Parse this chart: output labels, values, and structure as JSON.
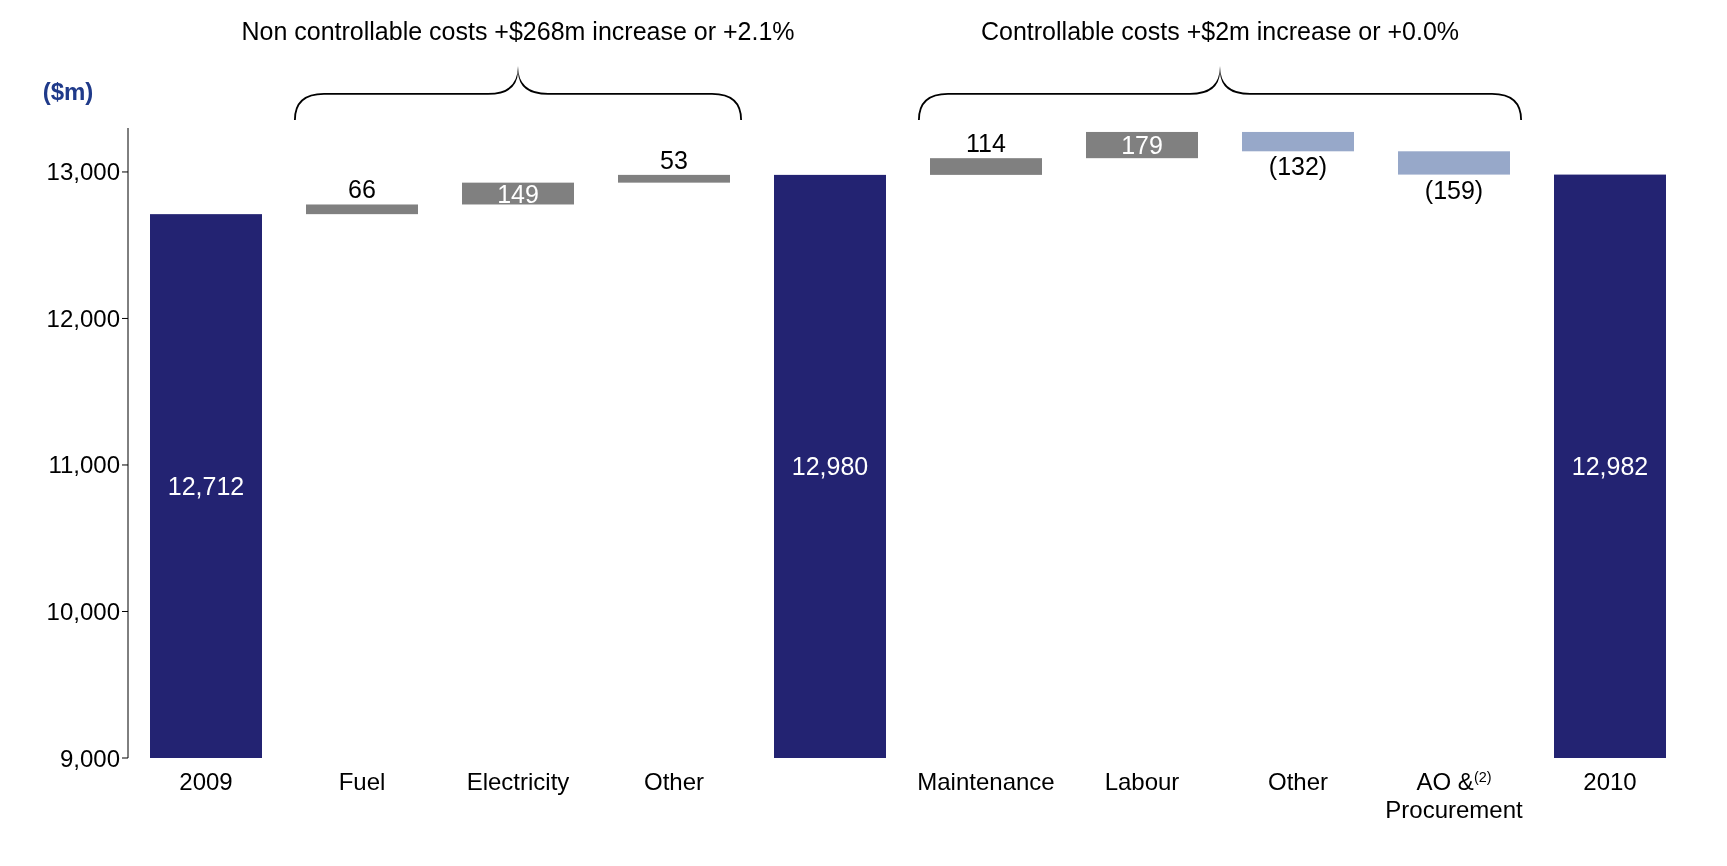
{
  "chart_data": {
    "type": "bar",
    "ylabel": "($m)",
    "annotations": [
      "Non controllable costs +$268m increase or +2.1%",
      "Controllable costs +$2m increase or +0.0%"
    ],
    "categories": [
      "2009",
      "Fuel",
      "Electricity",
      "Other",
      null,
      "Maintenance",
      "Labour",
      "Other",
      "AO &$^{(2)}$ Procurement",
      "2010"
    ],
    "values": [
      12712,
      66,
      149,
      53,
      12980,
      114,
      179,
      -132,
      -159,
      12982
    ],
    "base": [
      null,
      12712,
      12778,
      12927,
      null,
      12980,
      13094,
      13273,
      13141,
      null
    ],
    "colors": [
      "#232372",
      "#808080",
      "#808080",
      "#808080",
      "#232372",
      "#808080",
      "#808080",
      "#97a8c9",
      "#97a8c9",
      "#232372"
    ],
    "value_labels": [
      "12,712",
      "66",
      "149",
      "53",
      "12,980",
      "114",
      "179",
      "(132)",
      "(159)",
      "12,982"
    ],
    "ylim": [
      9000,
      13300
    ],
    "yticks": [
      {
        "value": 9000,
        "label": "9,000"
      },
      {
        "value": 10000,
        "label": "10,000"
      },
      {
        "value": 11000,
        "label": "11,000"
      },
      {
        "value": 12000,
        "label": "12,000"
      },
      {
        "value": 13000,
        "label": "13,000"
      }
    ],
    "grid": false,
    "legend": false
  }
}
